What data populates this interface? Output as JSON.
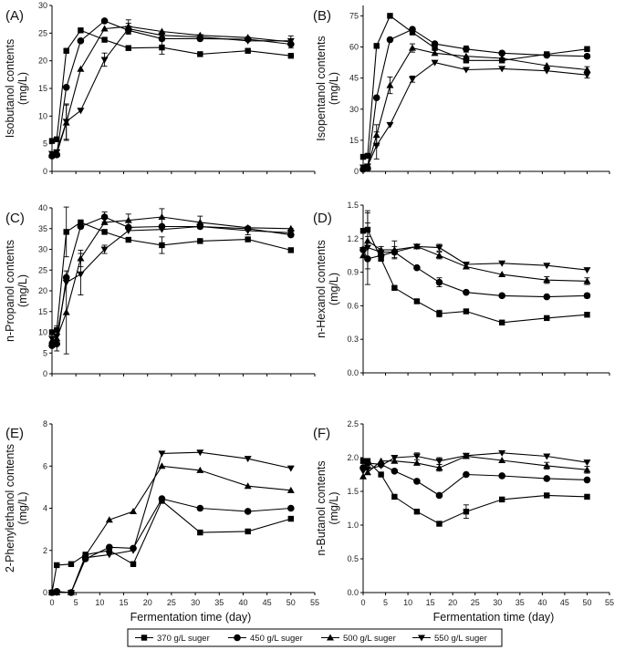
{
  "chart_data": [
    {
      "type": "line",
      "panel_label": "(A)",
      "ylabel": "Isobutanol contents",
      "yunit": "(mg/L)",
      "xlabel": "",
      "xlim": [
        0,
        55
      ],
      "ylim": [
        0,
        30
      ],
      "yticks": [
        "0",
        "5",
        "10",
        "15",
        "20",
        "25",
        "30"
      ],
      "xticks": [],
      "series": [
        {
          "name": "370 g/L suger",
          "x": [
            0,
            1,
            3,
            6,
            11,
            16,
            23,
            31,
            41,
            50
          ],
          "y": [
            5.5,
            5.8,
            21.8,
            25.5,
            23.8,
            22.3,
            22.4,
            21.2,
            21.8,
            20.9
          ],
          "err": [
            0,
            0,
            0,
            0,
            0,
            0,
            1.2,
            0,
            0,
            0
          ]
        },
        {
          "name": "450 g/L suger",
          "x": [
            0,
            1,
            3,
            6,
            11,
            16,
            23,
            31,
            41,
            50
          ],
          "y": [
            2.8,
            3.0,
            15.2,
            23.6,
            27.2,
            25.5,
            24.0,
            24.0,
            23.9,
            23.0
          ],
          "err": [
            0,
            0,
            0,
            0,
            0,
            0,
            0,
            0,
            0,
            0
          ]
        },
        {
          "name": "500 g/L suger",
          "x": [
            0,
            1,
            3,
            6,
            11,
            16,
            23,
            31,
            41,
            50
          ],
          "y": [
            3.0,
            3.2,
            8.8,
            18.5,
            25.8,
            26.2,
            25.3,
            24.6,
            24.2,
            23.4
          ],
          "err": [
            0,
            0,
            3.2,
            0,
            0,
            1.2,
            0,
            0,
            0,
            1.1
          ]
        },
        {
          "name": "550 g/L suger",
          "x": [
            0,
            1,
            3,
            6,
            11,
            16,
            23,
            31,
            41,
            50
          ],
          "y": [
            3.2,
            3.5,
            9.0,
            11.0,
            20.2,
            25.8,
            24.6,
            24.3,
            23.6,
            23.6
          ],
          "err": [
            0,
            0,
            3.2,
            0,
            1.2,
            1.0,
            0,
            0,
            0,
            0
          ]
        }
      ]
    },
    {
      "type": "line",
      "panel_label": "(B)",
      "ylabel": "Isopentanol contents",
      "yunit": "(mg/L)",
      "xlabel": "",
      "xlim": [
        0,
        55
      ],
      "ylim": [
        0,
        80
      ],
      "yticks": [
        "0",
        "15",
        "30",
        "45",
        "60",
        "75"
      ],
      "xticks": [],
      "series": [
        {
          "name": "370 g/L suger",
          "x": [
            0,
            1,
            3,
            6,
            11,
            16,
            23,
            31,
            41,
            50
          ],
          "y": [
            7.0,
            7.5,
            60.5,
            75.0,
            67.0,
            59.5,
            53.5,
            53.5,
            56.5,
            59.0
          ],
          "err": [
            0,
            0,
            0,
            0,
            0,
            0,
            0,
            0,
            0,
            0
          ]
        },
        {
          "name": "450 g/L suger",
          "x": [
            0,
            1,
            3,
            6,
            11,
            16,
            23,
            31,
            41,
            50
          ],
          "y": [
            1.0,
            1.5,
            35.5,
            63.5,
            68.5,
            61.5,
            59.0,
            57.0,
            56.0,
            55.5
          ],
          "err": [
            0,
            0,
            0,
            0,
            0,
            0,
            1.5,
            0,
            0,
            0
          ]
        },
        {
          "name": "500 g/L suger",
          "x": [
            0,
            1,
            3,
            6,
            11,
            16,
            23,
            31,
            41,
            50
          ],
          "y": [
            1.5,
            2.0,
            17.5,
            41.5,
            59.5,
            57.0,
            55.5,
            54.5,
            51.0,
            49.0
          ],
          "err": [
            0,
            0,
            5.0,
            4.0,
            2.0,
            0,
            0,
            0,
            0,
            1.5
          ]
        },
        {
          "name": "550 g/L suger",
          "x": [
            0,
            1,
            3,
            6,
            11,
            16,
            23,
            31,
            41,
            50
          ],
          "y": [
            2.0,
            2.5,
            12.5,
            22.5,
            44.5,
            52.5,
            49.0,
            49.5,
            48.5,
            46.5
          ],
          "err": [
            0,
            0,
            6.5,
            0,
            1.5,
            0,
            0,
            0,
            0,
            1.5
          ]
        }
      ]
    },
    {
      "type": "line",
      "panel_label": "(C)",
      "ylabel": "n-Propanol contents",
      "yunit": "(mg/L)",
      "xlabel": "",
      "xlim": [
        0,
        55
      ],
      "ylim": [
        0,
        40
      ],
      "yticks": [
        "0",
        "5",
        "10",
        "15",
        "20",
        "25",
        "30",
        "35",
        "40"
      ],
      "xticks": [],
      "series": [
        {
          "name": "370 g/L suger",
          "x": [
            0,
            1,
            3,
            6,
            11,
            16,
            23,
            31,
            41,
            50
          ],
          "y": [
            10.0,
            10.5,
            34.2,
            36.5,
            34.2,
            32.3,
            31.0,
            32.0,
            32.4,
            29.8
          ],
          "err": [
            0,
            0,
            6.0,
            0,
            0,
            0,
            2.0,
            0,
            0,
            0
          ]
        },
        {
          "name": "450 g/L suger",
          "x": [
            0,
            1,
            3,
            6,
            11,
            16,
            23,
            31,
            41,
            50
          ],
          "y": [
            6.8,
            7.2,
            23.2,
            35.5,
            37.8,
            35.3,
            35.5,
            35.5,
            35.0,
            33.5
          ],
          "err": [
            0,
            0,
            0,
            0,
            1.2,
            0,
            0,
            0,
            0,
            0
          ]
        },
        {
          "name": "500 g/L suger",
          "x": [
            0,
            1,
            3,
            6,
            11,
            16,
            23,
            31,
            41,
            50
          ],
          "y": [
            8.0,
            8.5,
            14.8,
            27.8,
            36.5,
            37.0,
            37.8,
            36.5,
            35.2,
            35.0
          ],
          "err": [
            0,
            3.0,
            10.0,
            2.0,
            0,
            1.5,
            2.0,
            1.5,
            0,
            0
          ]
        },
        {
          "name": "550 g/L suger",
          "x": [
            0,
            1,
            3,
            6,
            11,
            16,
            23,
            31,
            41,
            50
          ],
          "y": [
            8.5,
            9.0,
            22.0,
            24.0,
            30.0,
            34.5,
            34.8,
            35.5,
            34.5,
            34.0
          ],
          "err": [
            0,
            0,
            0,
            5.0,
            1.0,
            0,
            0,
            0,
            1.0,
            1.0
          ]
        }
      ]
    },
    {
      "type": "line",
      "panel_label": "(D)",
      "ylabel": "n-Hexanol contents",
      "yunit": "(mg/L)",
      "xlabel": "",
      "xlim": [
        0,
        55
      ],
      "ylim": [
        0,
        1.5
      ],
      "yticks": [
        "0.0",
        "0.3",
        "0.6",
        "0.9",
        "1.2",
        "1.5"
      ],
      "xticks": [],
      "series": [
        {
          "name": "370 g/L suger",
          "x": [
            0,
            1,
            4,
            7,
            12,
            17,
            23,
            31,
            41,
            50
          ],
          "y": [
            1.27,
            1.28,
            1.02,
            0.76,
            0.64,
            0.53,
            0.55,
            0.45,
            0.49,
            0.52
          ],
          "err": [
            0,
            0.06,
            0,
            0,
            0,
            0.03,
            0,
            0,
            0,
            0
          ]
        },
        {
          "name": "450 g/L suger",
          "x": [
            0,
            1,
            4,
            7,
            12,
            17,
            23,
            31,
            41,
            50
          ],
          "y": [
            1.1,
            1.02,
            1.05,
            1.08,
            0.94,
            0.81,
            0.72,
            0.69,
            0.68,
            0.69
          ],
          "err": [
            0,
            0,
            0,
            0,
            0,
            0.04,
            0,
            0,
            0,
            0.02
          ]
        },
        {
          "name": "500 g/L suger",
          "x": [
            0,
            1,
            4,
            7,
            12,
            17,
            23,
            31,
            41,
            50
          ],
          "y": [
            1.05,
            1.18,
            1.1,
            1.1,
            1.13,
            1.05,
            0.95,
            0.88,
            0.83,
            0.82
          ],
          "err": [
            0,
            0.25,
            0,
            0.08,
            0,
            0.03,
            0,
            0,
            0.03,
            0.03
          ]
        },
        {
          "name": "550 g/L suger",
          "x": [
            0,
            1,
            4,
            7,
            12,
            17,
            23,
            31,
            41,
            50
          ],
          "y": [
            1.1,
            1.12,
            1.08,
            1.08,
            1.13,
            1.12,
            0.97,
            0.98,
            0.96,
            0.92
          ],
          "err": [
            0,
            0.33,
            0.05,
            0.05,
            0,
            0.03,
            0,
            0,
            0,
            0
          ]
        }
      ]
    },
    {
      "type": "line",
      "panel_label": "(E)",
      "ylabel": "2-Phenylethanol contents",
      "yunit": "(mg/L)",
      "xlabel": "Fermentation time (day)",
      "xlim": [
        0,
        55
      ],
      "ylim": [
        0,
        8
      ],
      "yticks": [
        "0",
        "2",
        "4",
        "6",
        "8"
      ],
      "xticks": [
        "0",
        "5",
        "10",
        "15",
        "20",
        "25",
        "30",
        "35",
        "40",
        "45",
        "50",
        "55"
      ],
      "series": [
        {
          "name": "370 g/L suger",
          "x": [
            0,
            1,
            4,
            7,
            12,
            17,
            23,
            31,
            41,
            50
          ],
          "y": [
            0.0,
            1.3,
            1.35,
            1.8,
            2.0,
            1.35,
            4.35,
            2.85,
            2.9,
            3.5
          ],
          "err": [
            0,
            0,
            0,
            0,
            0,
            0,
            0,
            0,
            0,
            0
          ]
        },
        {
          "name": "450 g/L suger",
          "x": [
            0,
            1,
            4,
            7,
            12,
            17,
            23,
            31,
            41,
            50
          ],
          "y": [
            0.0,
            0.05,
            0.0,
            1.6,
            2.15,
            2.1,
            4.45,
            4.0,
            3.85,
            4.0
          ],
          "err": [
            0,
            0,
            0,
            0,
            0,
            0,
            0,
            0,
            0,
            0
          ]
        },
        {
          "name": "500 g/L suger",
          "x": [
            0,
            1,
            4,
            7,
            12,
            17,
            23,
            31,
            41,
            50
          ],
          "y": [
            0.0,
            0.0,
            0.0,
            1.75,
            3.45,
            3.85,
            6.0,
            5.8,
            5.05,
            4.85
          ],
          "err": [
            0,
            0,
            0,
            0,
            0,
            0,
            0,
            0,
            0,
            0
          ]
        },
        {
          "name": "550 g/L suger",
          "x": [
            0,
            1,
            4,
            7,
            12,
            17,
            23,
            31,
            41,
            50
          ],
          "y": [
            0.0,
            0.0,
            0.0,
            1.65,
            1.8,
            2.0,
            6.6,
            6.65,
            6.35,
            5.9
          ],
          "err": [
            0,
            0,
            0,
            0,
            0,
            0,
            0,
            0,
            0,
            0
          ]
        }
      ]
    },
    {
      "type": "line",
      "panel_label": "(F)",
      "ylabel": "n-Butanol contents",
      "yunit": "(mg/L)",
      "xlabel": "Fermentation time (day)",
      "xlim": [
        0,
        55
      ],
      "ylim": [
        0,
        2.5
      ],
      "yticks": [
        "0.0",
        "0.5",
        "1.0",
        "1.5",
        "2.0",
        "2.5"
      ],
      "xticks": [
        "0",
        "5",
        "10",
        "15",
        "20",
        "25",
        "30",
        "35",
        "40",
        "45",
        "50",
        "55"
      ],
      "series": [
        {
          "name": "370 g/L suger",
          "x": [
            0,
            1,
            4,
            7,
            12,
            17,
            23,
            31,
            41,
            50
          ],
          "y": [
            1.95,
            1.95,
            1.75,
            1.42,
            1.2,
            1.02,
            1.2,
            1.38,
            1.44,
            1.42
          ],
          "err": [
            0,
            0,
            0,
            0,
            0,
            0,
            0.1,
            0,
            0,
            0
          ]
        },
        {
          "name": "450 g/L suger",
          "x": [
            0,
            1,
            4,
            7,
            12,
            17,
            23,
            31,
            41,
            50
          ],
          "y": [
            1.85,
            1.92,
            1.9,
            1.8,
            1.65,
            1.44,
            1.75,
            1.73,
            1.69,
            1.67
          ],
          "err": [
            0,
            0,
            0,
            0,
            0,
            0,
            0,
            0,
            0,
            0
          ]
        },
        {
          "name": "500 g/L suger",
          "x": [
            0,
            1,
            4,
            7,
            12,
            17,
            23,
            31,
            41,
            50
          ],
          "y": [
            1.72,
            1.78,
            1.95,
            1.95,
            1.92,
            1.85,
            2.02,
            1.96,
            1.88,
            1.82
          ],
          "err": [
            0,
            0,
            0,
            0,
            0,
            0.05,
            0,
            0,
            0.05,
            0.05
          ]
        },
        {
          "name": "550 g/L suger",
          "x": [
            0,
            1,
            4,
            7,
            12,
            17,
            23,
            31,
            41,
            50
          ],
          "y": [
            1.8,
            1.83,
            1.88,
            2.0,
            2.02,
            1.95,
            2.03,
            2.07,
            2.02,
            1.93
          ],
          "err": [
            0,
            0,
            0,
            0,
            0.05,
            0.05,
            0,
            0,
            0,
            0
          ]
        }
      ]
    }
  ],
  "legend": [
    {
      "label": "370 g/L suger",
      "marker": "square"
    },
    {
      "label": "450 g/L suger",
      "marker": "circle"
    },
    {
      "label": "500 g/L suger",
      "marker": "triangle-up"
    },
    {
      "label": "550 g/L suger",
      "marker": "triangle-down"
    }
  ]
}
